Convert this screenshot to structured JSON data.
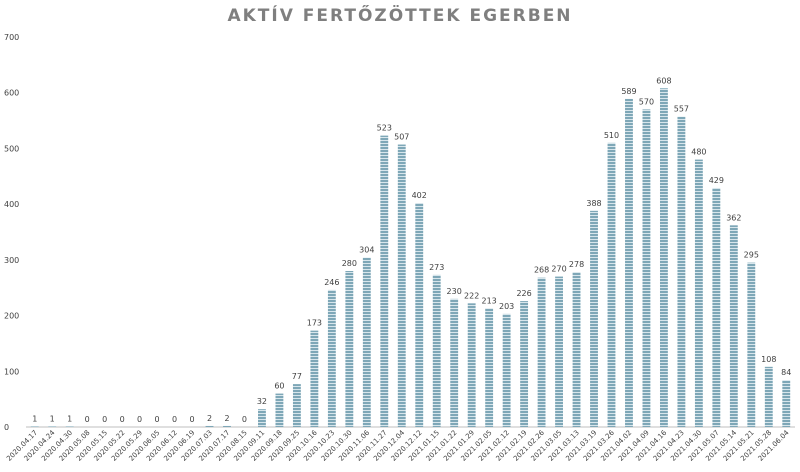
{
  "chart_data": {
    "type": "bar",
    "title": "AKTÍV FERTŐZÖTTEK EGERBEN",
    "xlabel": "",
    "ylabel": "",
    "ylim": [
      0,
      700
    ],
    "yticks": [
      0,
      100,
      200,
      300,
      400,
      500,
      600,
      700
    ],
    "grid": false,
    "legend": "none",
    "colors": {
      "bar_fill": "#7ea7b7",
      "bar_stripe": "#d8e6ec",
      "axis": "#bfbfbf",
      "text": "#404040",
      "title": "#7f7f7f"
    },
    "categories": [
      "2020.04.17",
      "2020.04.24",
      "2020.04.30",
      "2020.05.08",
      "2020.05.15",
      "2020.05.22",
      "2020.05.29",
      "2020.06.05",
      "2020.06.12",
      "2020.06.19",
      "2020.07.03",
      "2020.07.17",
      "2020.08.15",
      "2020.09.11",
      "2020.09.18",
      "2020.09.25",
      "2020.10.16",
      "2020.10.23",
      "2020.10.30",
      "2020.11.06",
      "2020.11.27",
      "2020.12.04",
      "2020.12.12",
      "2021.01.15",
      "2021.01.22",
      "2021.01.29",
      "2021.02.05",
      "2021.02.12",
      "2021.02.19",
      "2021.02.26",
      "2021.03.05",
      "2021.03.13",
      "2021.03.19",
      "2021.03.26",
      "2021.04.02",
      "2021.04.09",
      "2021.04.16",
      "2021.04.23",
      "2021.04.30",
      "2021.05.07",
      "2021.05.14",
      "2021.05.21",
      "2021.05.28",
      "2021.06.04"
    ],
    "values": [
      1,
      1,
      1,
      0,
      0,
      0,
      0,
      0,
      0,
      0,
      2,
      2,
      0,
      32,
      60,
      77,
      173,
      246,
      280,
      304,
      523,
      507,
      402,
      273,
      230,
      222,
      213,
      203,
      226,
      268,
      270,
      278,
      388,
      510,
      589,
      570,
      608,
      557,
      480,
      429,
      362,
      295,
      108,
      84
    ]
  }
}
